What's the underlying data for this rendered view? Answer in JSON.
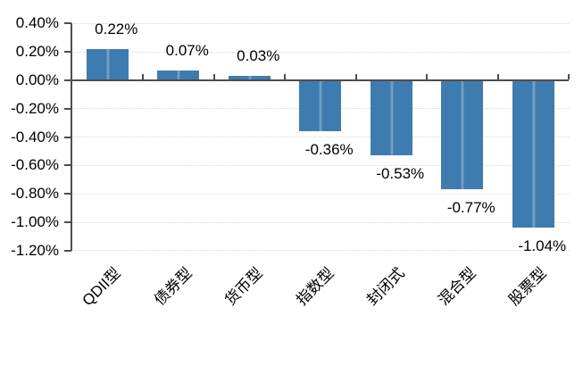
{
  "chart_data": {
    "type": "bar",
    "title": "",
    "xlabel": "",
    "ylabel": "",
    "unit": "%",
    "categories": [
      "QDII型",
      "债券型",
      "货币型",
      "指数型",
      "封闭式",
      "混合型",
      "股票型"
    ],
    "values": [
      0.22,
      0.07,
      0.03,
      -0.36,
      -0.53,
      -0.77,
      -1.04
    ],
    "data_labels": [
      "0.22%",
      "0.07%",
      "0.03%",
      "-0.36%",
      "-0.53%",
      "-0.77%",
      "-1.04%"
    ],
    "y_ticks": [
      0.4,
      0.2,
      0.0,
      -0.2,
      -0.4,
      -0.6,
      -0.8,
      -1.0,
      -1.2
    ],
    "y_tick_labels": [
      "0.40%",
      "0.20%",
      "0.00%",
      "-0.20%",
      "-0.40%",
      "-0.60%",
      "-0.80%",
      "-1.00%",
      "-1.20%"
    ],
    "ylim": [
      -1.2,
      0.4
    ],
    "grid": true,
    "legend": "none",
    "category_label_rotation_deg": 45,
    "colors": {
      "bar": "#3e7cb0",
      "bar_highlight": "#6f9fc6",
      "axis": "#4d4d4d",
      "gridline": "#d8d8d8",
      "text": "#000000",
      "background": "#ffffff"
    }
  }
}
